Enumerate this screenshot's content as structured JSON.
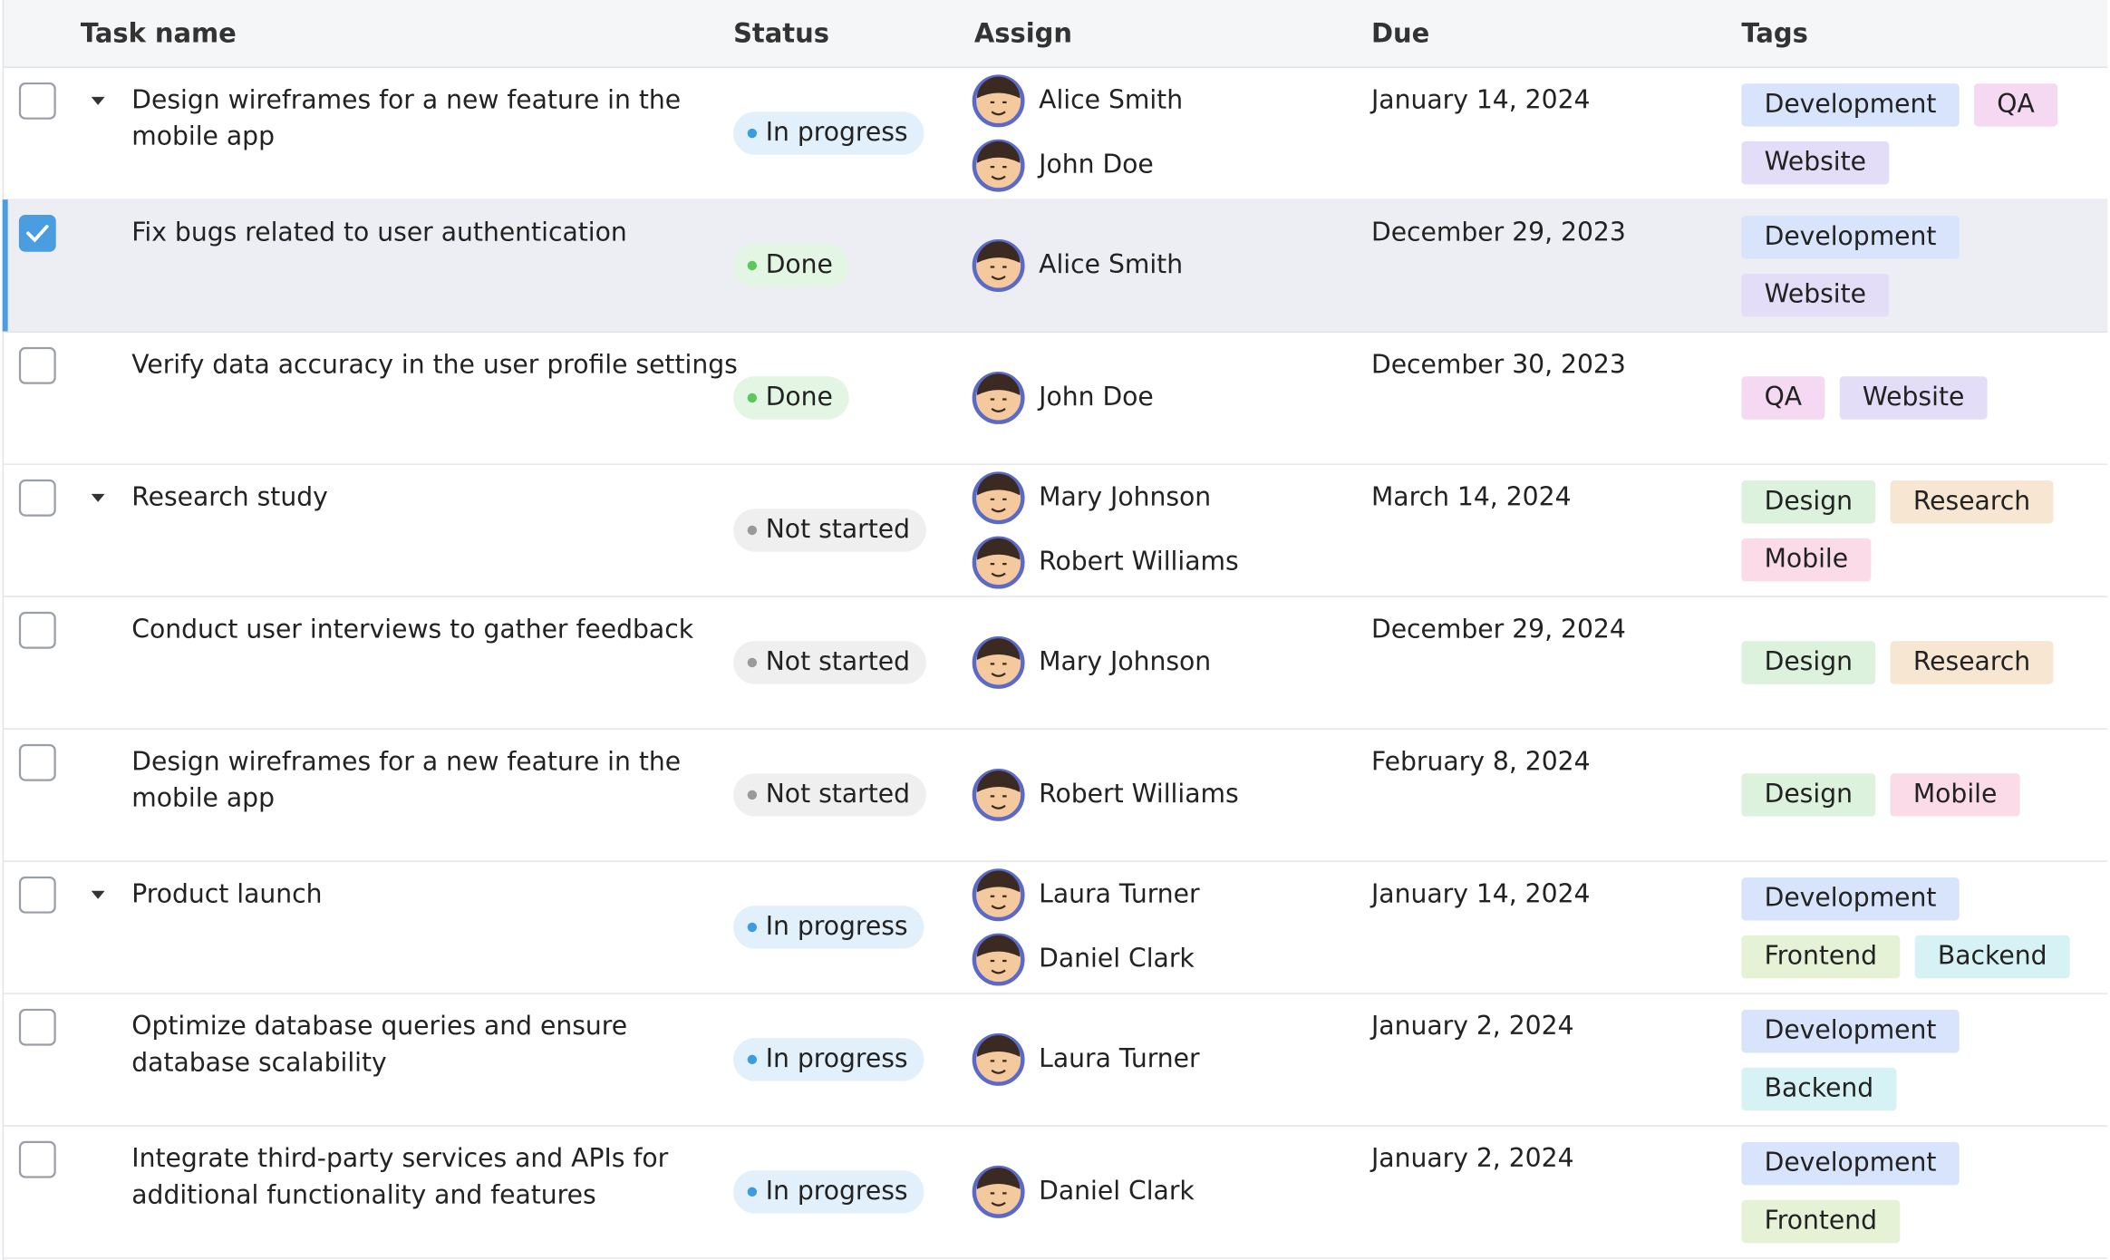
{
  "table": {
    "header": {
      "task": "Task name",
      "status": "Status",
      "assign": "Assign",
      "due": "Due",
      "tags": "Tags"
    },
    "rows": [
      {
        "checked": false,
        "expandable": true,
        "task": [
          "Design wireframes for a new feature in the",
          "mobile app"
        ],
        "status": {
          "label": "In progress",
          "color": "#3d9be0",
          "background": "#e2f0fb"
        },
        "assignees": [
          "Alice Smith",
          "John Doe"
        ],
        "due": "January 14, 2024",
        "tags": [
          {
            "label": "Development",
            "color": "#3d6fd6",
            "background": "#d8e4fb"
          },
          {
            "label": "QA",
            "color": "#b838b4",
            "background": "#f5d9f3"
          },
          {
            "label": "Website",
            "color": "#6e4fcf",
            "background": "#e3ddf8"
          }
        ]
      },
      {
        "checked": true,
        "expandable": false,
        "task": [
          "Fix bugs related to user authentication"
        ],
        "status": {
          "label": "Done",
          "color": "#5cc75c",
          "background": "#e3f5e3"
        },
        "assignees": [
          "Alice Smith"
        ],
        "due": "December 29, 2023",
        "tags": [
          {
            "label": "Development",
            "color": "#3d6fd6",
            "background": "#d8e4fb"
          },
          {
            "label": "Website",
            "color": "#6e4fcf",
            "background": "#e3ddf8"
          }
        ]
      },
      {
        "checked": false,
        "expandable": false,
        "task": [
          "Verify data accuracy in the user profile settings"
        ],
        "status": {
          "label": "Done",
          "color": "#5cc75c",
          "background": "#e3f5e3"
        },
        "assignees": [
          "John Doe"
        ],
        "due": "December 30, 2023",
        "tags": [
          {
            "label": "QA",
            "color": "#b838b4",
            "background": "#f5d9f3"
          },
          {
            "label": "Website",
            "color": "#6e4fcf",
            "background": "#e3ddf8"
          }
        ]
      },
      {
        "checked": false,
        "expandable": true,
        "task": [
          "Research study"
        ],
        "status": {
          "label": "Not started",
          "color": "#9a9a9a",
          "background": "#efefef"
        },
        "assignees": [
          "Mary Johnson",
          "Robert Williams"
        ],
        "due": "March 14, 2024",
        "tags": [
          {
            "label": "Design",
            "color": "#4aa64a",
            "background": "#dcf2dc"
          },
          {
            "label": "Research",
            "color": "#c0842e",
            "background": "#f6e6d2"
          },
          {
            "label": "Mobile",
            "color": "#d54587",
            "background": "#fadbe7"
          }
        ]
      },
      {
        "checked": false,
        "expandable": false,
        "task": [
          "Conduct user interviews to gather feedback"
        ],
        "status": {
          "label": "Not started",
          "color": "#9a9a9a",
          "background": "#efefef"
        },
        "assignees": [
          "Mary Johnson"
        ],
        "due": "December 29, 2024",
        "tags": [
          {
            "label": "Design",
            "color": "#4aa64a",
            "background": "#dcf2dc"
          },
          {
            "label": "Research",
            "color": "#c0842e",
            "background": "#f6e6d2"
          }
        ]
      },
      {
        "checked": false,
        "expandable": false,
        "task": [
          "Design wireframes for a new feature in the",
          "mobile app"
        ],
        "status": {
          "label": "Not started",
          "color": "#9a9a9a",
          "background": "#efefef"
        },
        "assignees": [
          "Robert Williams"
        ],
        "due": "February 8, 2024",
        "tags": [
          {
            "label": "Design",
            "color": "#4aa64a",
            "background": "#dcf2dc"
          },
          {
            "label": "Mobile",
            "color": "#d54587",
            "background": "#fadbe7"
          }
        ]
      },
      {
        "checked": false,
        "expandable": true,
        "task": [
          "Product launch"
        ],
        "status": {
          "label": "In progress",
          "color": "#3d9be0",
          "background": "#e2f0fb"
        },
        "assignees": [
          "Laura Turner",
          "Daniel Clark"
        ],
        "due": "January 14, 2024",
        "tags": [
          {
            "label": "Development",
            "color": "#3d6fd6",
            "background": "#d8e4fb"
          },
          {
            "label": "Frontend",
            "color": "#6f9e2c",
            "background": "#e6f2d5"
          },
          {
            "label": "Backend",
            "color": "#34a7b8",
            "background": "#d7f2f4"
          }
        ]
      },
      {
        "checked": false,
        "expandable": false,
        "task": [
          "Optimize database queries and ensure",
          "database scalability"
        ],
        "status": {
          "label": "In progress",
          "color": "#3d9be0",
          "background": "#e2f0fb"
        },
        "assignees": [
          "Laura Turner"
        ],
        "due": "January 2, 2024",
        "tags": [
          {
            "label": "Development",
            "color": "#3d6fd6",
            "background": "#d8e4fb"
          },
          {
            "label": "Backend",
            "color": "#34a7b8",
            "background": "#d7f2f4"
          }
        ]
      },
      {
        "checked": false,
        "expandable": false,
        "task": [
          "Integrate third-party services and APIs for",
          "additional functionality and features"
        ],
        "status": {
          "label": "In progress",
          "color": "#3d9be0",
          "background": "#e2f0fb"
        },
        "assignees": [
          "Daniel Clark"
        ],
        "due": "January 2, 2024",
        "tags": [
          {
            "label": "Development",
            "color": "#3d6fd6",
            "background": "#d8e4fb"
          },
          {
            "label": "Frontend",
            "color": "#6f9e2c",
            "background": "#e6f2d5"
          }
        ]
      }
    ]
  }
}
